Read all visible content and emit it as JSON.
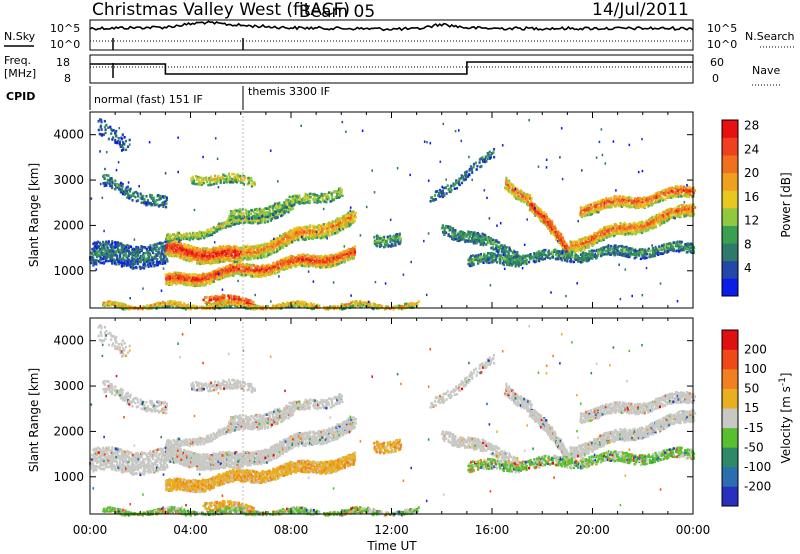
{
  "header": {
    "station_title": "Christmas Valley West (fitACF)",
    "beam_label": "Beam 05",
    "date_label": "14/Jul/2011"
  },
  "panels": {
    "nsky": {
      "label": "N.Sky",
      "right_label": "N.Search",
      "ticks_left": [
        "10^5",
        "10^0"
      ],
      "ticks_right": [
        "10^5",
        "10^0"
      ]
    },
    "freq": {
      "label_line1": "Freq.",
      "label_line2": "[MHz]",
      "right_label": "Nave",
      "ticks_left": [
        "18",
        "8"
      ],
      "ticks_right": [
        "60",
        "0"
      ]
    },
    "cpid": {
      "label": "CPID",
      "segments": [
        {
          "text": "normal (fast) 151 IF"
        },
        {
          "text": "themis 3300 IF"
        }
      ]
    }
  },
  "x_axis": {
    "label": "Time UT",
    "tick_labels": [
      "00:00",
      "04:00",
      "08:00",
      "12:00",
      "16:00",
      "20:00",
      "00:00"
    ]
  },
  "range_axis": {
    "label": "Slant Range [km]",
    "tick_labels": [
      "1000",
      "2000",
      "3000",
      "4000"
    ]
  },
  "colorbars": {
    "power": {
      "label": "Power [dB]",
      "tick_labels": [
        "4",
        "8",
        "12",
        "16",
        "20",
        "24",
        "28"
      ],
      "colors": [
        "#0a1de8",
        "#2348a8",
        "#2e7a6a",
        "#3aa050",
        "#90c840",
        "#e8c820",
        "#f0a020",
        "#f07020",
        "#f04020",
        "#e81010"
      ]
    },
    "velocity": {
      "label_main": "Velocity [m s",
      "label_sup": "-1",
      "label_end": "]",
      "tick_labels": [
        "200",
        "100",
        "50",
        "15",
        "-15",
        "-50",
        "-100",
        "-200"
      ],
      "colors": [
        "#2830c0",
        "#2a6eb0",
        "#2e8a66",
        "#58c030",
        "#c8c8c4",
        "#e8b020",
        "#f08020",
        "#f04818",
        "#e01010"
      ]
    }
  },
  "chart_data": [
    {
      "type": "line",
      "name_label": "N.Sky",
      "x_range_hours": [
        0,
        24
      ],
      "approx_profile_hours": [
        0,
        3,
        4.5,
        6,
        8,
        12,
        13,
        14,
        15,
        16,
        24
      ],
      "approx_profile_level": [
        0.72,
        0.76,
        0.92,
        0.82,
        0.74,
        0.7,
        0.7,
        0.86,
        0.74,
        0.72,
        0.72
      ]
    },
    {
      "type": "line",
      "name_label": "Freq.",
      "y_ticks_left": [
        8,
        18
      ],
      "y_ticks_right": [
        0,
        60
      ],
      "freq_step_hours": [
        0,
        3,
        3,
        15,
        15,
        24
      ],
      "freq_step_mhz": [
        15.5,
        15.5,
        10.5,
        10.5,
        16.5,
        16.5
      ]
    },
    {
      "type": "heatmap",
      "panel": "power",
      "x_range_hours": [
        0,
        24
      ],
      "y_range_km": [
        180,
        4500
      ],
      "colorbar_range_db": [
        0,
        30
      ]
    },
    {
      "type": "heatmap",
      "panel": "velocity",
      "x_range_hours": [
        0,
        24
      ],
      "y_range_km": [
        180,
        4500
      ],
      "colorbar_range_ms": [
        -250,
        250
      ]
    }
  ]
}
